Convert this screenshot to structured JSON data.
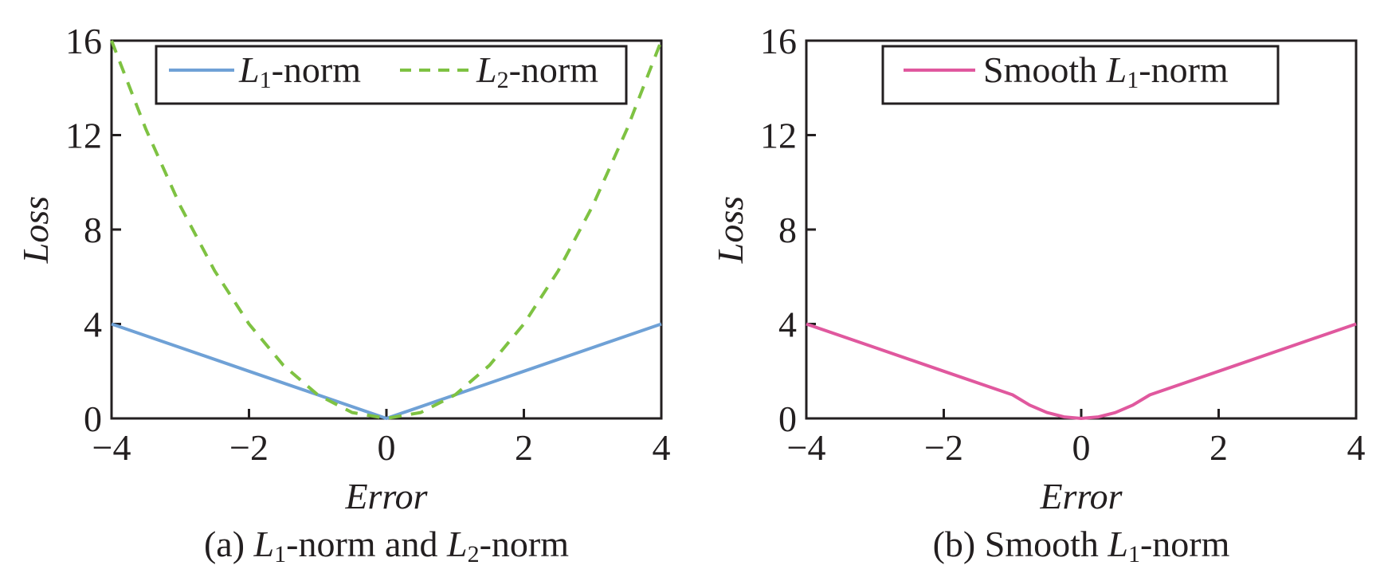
{
  "colors": {
    "l1": "#6fa1d6",
    "l2": "#7ec242",
    "smooth": "#e0589e",
    "axis": "#231f20"
  },
  "chart_data": [
    {
      "type": "line",
      "xlabel": "Error",
      "ylabel": "Loss",
      "xlim": [
        -4,
        4
      ],
      "ylim": [
        0,
        16
      ],
      "xticks": [
        "−4",
        "−2",
        "0",
        "2",
        "4"
      ],
      "yticks": [
        "0",
        "4",
        "8",
        "12",
        "16"
      ],
      "legend_position": "top-center",
      "caption": {
        "prefix": "(a) ",
        "l1": "L",
        "l1_sub": "1",
        "mid": "-norm and ",
        "l2": "L",
        "l2_sub": "2",
        "suffix": "-norm"
      },
      "series": [
        {
          "key": "l1",
          "legend": {
            "main": "L",
            "sub": "1",
            "rest": "-norm"
          },
          "style": "solid",
          "x": [
            -4,
            -3,
            -2,
            -1,
            0,
            1,
            2,
            3,
            4
          ],
          "y": [
            4,
            3,
            2,
            1,
            0,
            1,
            2,
            3,
            4
          ]
        },
        {
          "key": "l2",
          "legend": {
            "main": "L",
            "sub": "2",
            "rest": "-norm"
          },
          "style": "dashed",
          "x": [
            -4,
            -3.5,
            -3,
            -2.5,
            -2,
            -1.5,
            -1,
            -0.5,
            0,
            0.5,
            1,
            1.5,
            2,
            2.5,
            3,
            3.5,
            4
          ],
          "y": [
            16,
            12.25,
            9,
            6.25,
            4,
            2.25,
            1,
            0.25,
            0,
            0.25,
            1,
            2.25,
            4,
            6.25,
            9,
            12.25,
            16
          ]
        }
      ]
    },
    {
      "type": "line",
      "xlabel": "Error",
      "ylabel": "Loss",
      "xlim": [
        -4,
        4
      ],
      "ylim": [
        0,
        16
      ],
      "xticks": [
        "−4",
        "−2",
        "0",
        "2",
        "4"
      ],
      "yticks": [
        "0",
        "4",
        "8",
        "12",
        "16"
      ],
      "legend_position": "top-center",
      "caption": {
        "prefix": "(b) Smooth ",
        "l1": "L",
        "l1_sub": "1",
        "suffix": "-norm"
      },
      "series": [
        {
          "key": "smooth",
          "legend": {
            "pre": "Smooth ",
            "main": "L",
            "sub": "1",
            "rest": "-norm"
          },
          "style": "solid",
          "x": [
            -4,
            -3,
            -2,
            -1,
            -0.75,
            -0.5,
            -0.25,
            0,
            0.25,
            0.5,
            0.75,
            1,
            2,
            3,
            4
          ],
          "y": [
            4,
            3,
            2,
            1,
            0.5625,
            0.25,
            0.0625,
            0,
            0.0625,
            0.25,
            0.5625,
            1,
            2,
            3,
            4
          ]
        }
      ]
    }
  ]
}
